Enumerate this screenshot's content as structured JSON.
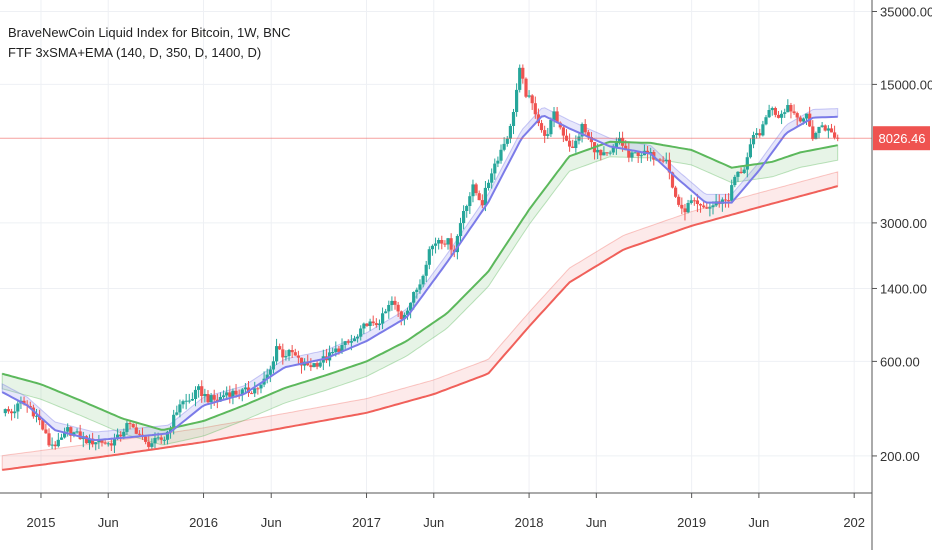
{
  "legend": {
    "title": "BraveNewCoin Liquid Index for Bitcoin, 1W, BNC",
    "indicator": "FTF 3xSMA+EMA (140, D, 350, D, 1400, D)"
  },
  "last_price_label": "8026.46",
  "colors": {
    "up": "#26a69a",
    "down": "#ef5350",
    "sma_fast": "#7b7be8",
    "sma_mid": "#5cb85c",
    "sma_slow": "#f0605a",
    "last_price": "#ef5350",
    "grid": "#eef0f4",
    "axis_text": "#333333"
  },
  "chart_data": {
    "type": "candlestick",
    "y_scale": "log",
    "y_ticks": [
      "35000.00",
      "15000.00",
      "8026.46",
      "3000.00",
      "1400.00",
      "600.00",
      "200.00"
    ],
    "y_tick_values": [
      35000,
      15000,
      8026.46,
      3000,
      1400,
      600,
      200
    ],
    "x_ticks": [
      "2015",
      "Jun",
      "2016",
      "Jun",
      "2017",
      "Jun",
      "2018",
      "Jun",
      "2019",
      "Jun",
      "202"
    ],
    "x_tick_dates": [
      "2015-01-01",
      "2015-06-01",
      "2016-01-01",
      "2016-06-01",
      "2017-01-01",
      "2017-06-01",
      "2018-01-01",
      "2018-06-01",
      "2019-01-01",
      "2019-06-01",
      "2020-01-01"
    ],
    "x_range": [
      "2014-10-01",
      "2020-02-10"
    ],
    "y_range": [
      130,
      40000
    ],
    "last_price": 8026.46,
    "close_series": [
      [
        "2014-10-06",
        340
      ],
      [
        "2014-10-27",
        330
      ],
      [
        "2014-11-17",
        370
      ],
      [
        "2014-12-08",
        350
      ],
      [
        "2014-12-29",
        300
      ],
      [
        "2015-01-19",
        230
      ],
      [
        "2015-02-09",
        230
      ],
      [
        "2015-03-02",
        270
      ],
      [
        "2015-03-30",
        250
      ],
      [
        "2015-04-20",
        235
      ],
      [
        "2015-05-11",
        240
      ],
      [
        "2015-06-01",
        230
      ],
      [
        "2015-06-22",
        245
      ],
      [
        "2015-07-13",
        285
      ],
      [
        "2015-08-03",
        270
      ],
      [
        "2015-08-24",
        230
      ],
      [
        "2015-09-14",
        235
      ],
      [
        "2015-10-05",
        245
      ],
      [
        "2015-10-26",
        310
      ],
      [
        "2015-11-09",
        370
      ],
      [
        "2015-11-30",
        380
      ],
      [
        "2015-12-21",
        430
      ],
      [
        "2016-01-11",
        390
      ],
      [
        "2016-02-01",
        380
      ],
      [
        "2016-02-22",
        420
      ],
      [
        "2016-03-14",
        415
      ],
      [
        "2016-04-11",
        425
      ],
      [
        "2016-05-09",
        450
      ],
      [
        "2016-05-30",
        540
      ],
      [
        "2016-06-13",
        720
      ],
      [
        "2016-06-27",
        650
      ],
      [
        "2016-07-18",
        660
      ],
      [
        "2016-08-08",
        580
      ],
      [
        "2016-08-29",
        575
      ],
      [
        "2016-09-19",
        600
      ],
      [
        "2016-10-10",
        640
      ],
      [
        "2016-10-31",
        700
      ],
      [
        "2016-11-21",
        740
      ],
      [
        "2016-12-12",
        790
      ],
      [
        "2017-01-02",
        950
      ],
      [
        "2017-01-16",
        900
      ],
      [
        "2017-02-06",
        1000
      ],
      [
        "2017-02-27",
        1200
      ],
      [
        "2017-03-20",
        1000
      ],
      [
        "2017-04-10",
        1200
      ],
      [
        "2017-05-01",
        1500
      ],
      [
        "2017-05-22",
        2200
      ],
      [
        "2017-06-12",
        2500
      ],
      [
        "2017-07-03",
        2400
      ],
      [
        "2017-07-17",
        2200
      ],
      [
        "2017-08-07",
        3500
      ],
      [
        "2017-08-28",
        4500
      ],
      [
        "2017-09-18",
        3800
      ],
      [
        "2017-10-09",
        5500
      ],
      [
        "2017-10-30",
        7000
      ],
      [
        "2017-11-20",
        9000
      ],
      [
        "2017-12-11",
        17500
      ],
      [
        "2017-12-25",
        13500
      ],
      [
        "2018-01-15",
        11000
      ],
      [
        "2018-02-05",
        8000
      ],
      [
        "2018-02-26",
        10500
      ],
      [
        "2018-03-19",
        8500
      ],
      [
        "2018-04-09",
        7000
      ],
      [
        "2018-04-30",
        9200
      ],
      [
        "2018-05-21",
        7500
      ],
      [
        "2018-06-11",
        6500
      ],
      [
        "2018-07-02",
        6600
      ],
      [
        "2018-07-23",
        8000
      ],
      [
        "2018-08-13",
        6400
      ],
      [
        "2018-09-03",
        6800
      ],
      [
        "2018-09-24",
        6600
      ],
      [
        "2018-10-15",
        6500
      ],
      [
        "2018-11-05",
        6400
      ],
      [
        "2018-11-19",
        4500
      ],
      [
        "2018-12-10",
        3400
      ],
      [
        "2018-12-31",
        3800
      ],
      [
        "2019-01-21",
        3550
      ],
      [
        "2019-02-11",
        3600
      ],
      [
        "2019-03-04",
        3850
      ],
      [
        "2019-03-25",
        4000
      ],
      [
        "2019-04-08",
        5100
      ],
      [
        "2019-04-29",
        5700
      ],
      [
        "2019-05-20",
        8000
      ],
      [
        "2019-06-10",
        9000
      ],
      [
        "2019-06-24",
        11500
      ],
      [
        "2019-07-15",
        10500
      ],
      [
        "2019-08-05",
        11800
      ],
      [
        "2019-08-26",
        10300
      ],
      [
        "2019-09-16",
        10200
      ],
      [
        "2019-09-30",
        8200
      ],
      [
        "2019-10-21",
        9400
      ],
      [
        "2019-11-11",
        8500
      ],
      [
        "2019-11-25",
        8026.46
      ]
    ],
    "sma_140": [
      [
        "2014-10-06",
        420
      ],
      [
        "2014-12-01",
        360
      ],
      [
        "2015-02-01",
        270
      ],
      [
        "2015-05-01",
        240
      ],
      [
        "2015-08-01",
        250
      ],
      [
        "2015-10-15",
        260
      ],
      [
        "2016-01-01",
        360
      ],
      [
        "2016-04-01",
        410
      ],
      [
        "2016-07-01",
        560
      ],
      [
        "2016-10-01",
        620
      ],
      [
        "2017-01-01",
        760
      ],
      [
        "2017-04-01",
        1000
      ],
      [
        "2017-07-01",
        1900
      ],
      [
        "2017-10-01",
        3800
      ],
      [
        "2017-12-15",
        8000
      ],
      [
        "2018-02-01",
        10500
      ],
      [
        "2018-04-01",
        9000
      ],
      [
        "2018-07-01",
        7300
      ],
      [
        "2018-10-01",
        6700
      ],
      [
        "2018-12-01",
        5000
      ],
      [
        "2019-02-01",
        3800
      ],
      [
        "2019-04-01",
        3800
      ],
      [
        "2019-06-01",
        5500
      ],
      [
        "2019-08-01",
        8500
      ],
      [
        "2019-10-01",
        10200
      ],
      [
        "2019-11-25",
        10300
      ]
    ],
    "sma_350": [
      [
        "2014-10-06",
        520
      ],
      [
        "2015-01-01",
        460
      ],
      [
        "2015-04-01",
        380
      ],
      [
        "2015-07-01",
        310
      ],
      [
        "2015-10-01",
        270
      ],
      [
        "2016-01-01",
        300
      ],
      [
        "2016-04-01",
        360
      ],
      [
        "2016-07-01",
        440
      ],
      [
        "2016-10-01",
        510
      ],
      [
        "2017-01-01",
        600
      ],
      [
        "2017-04-01",
        760
      ],
      [
        "2017-07-01",
        1050
      ],
      [
        "2017-10-01",
        1700
      ],
      [
        "2018-01-01",
        3500
      ],
      [
        "2018-04-01",
        6500
      ],
      [
        "2018-07-01",
        7700
      ],
      [
        "2018-10-01",
        7600
      ],
      [
        "2019-01-01",
        7000
      ],
      [
        "2019-04-01",
        5700
      ],
      [
        "2019-07-01",
        6100
      ],
      [
        "2019-09-01",
        6800
      ],
      [
        "2019-11-25",
        7400
      ]
    ],
    "sma_1400": [
      [
        "2014-10-06",
        170
      ],
      [
        "2015-06-01",
        200
      ],
      [
        "2016-01-01",
        235
      ],
      [
        "2016-06-01",
        270
      ],
      [
        "2017-01-01",
        330
      ],
      [
        "2017-06-01",
        410
      ],
      [
        "2017-10-01",
        520
      ],
      [
        "2018-01-01",
        900
      ],
      [
        "2018-04-01",
        1500
      ],
      [
        "2018-08-01",
        2200
      ],
      [
        "2019-01-01",
        2900
      ],
      [
        "2019-06-01",
        3600
      ],
      [
        "2019-11-25",
        4600
      ]
    ]
  }
}
